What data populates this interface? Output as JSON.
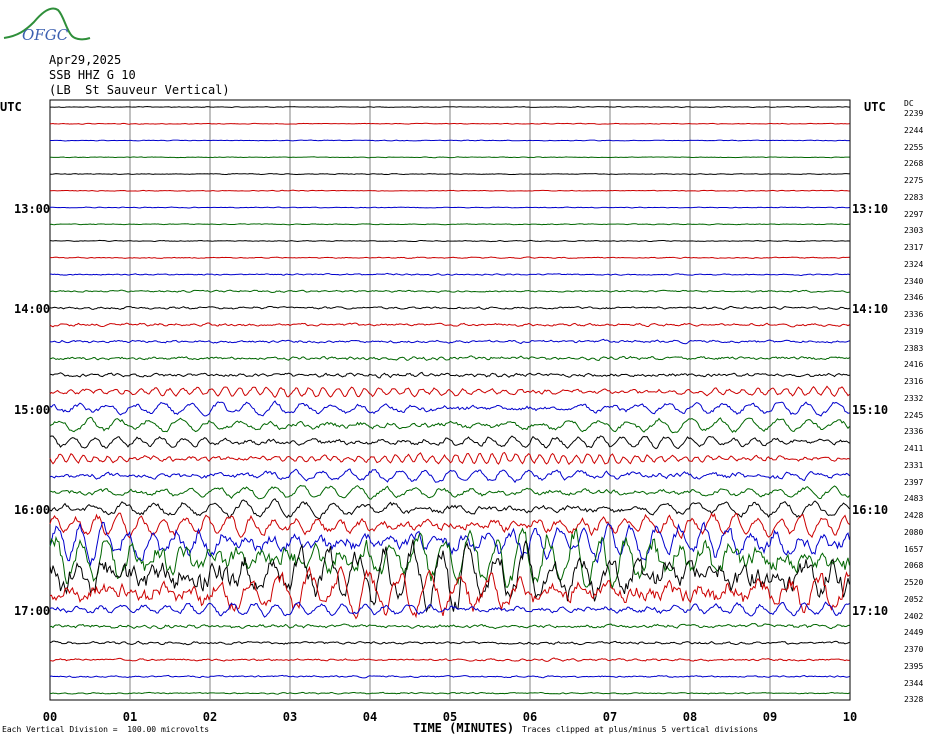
{
  "logo": {
    "text": "OFGC",
    "color": "#2f8f3a",
    "text_color": "#3b5fb0"
  },
  "header": {
    "date": "Apr29,2025",
    "station": "SSB HHZ G 10",
    "location": "(LB  St Sauveur Vertical)"
  },
  "utc_left": "UTC",
  "utc_right": "UTC",
  "dc_label": "DC",
  "colors": [
    "#000000",
    "#cc0000",
    "#0000cc",
    "#006600"
  ],
  "chart_data": {
    "type": "line",
    "xlabel": "TIME (MINUTES)",
    "x_ticks": [
      "00",
      "01",
      "02",
      "03",
      "04",
      "05",
      "06",
      "07",
      "08",
      "09",
      "10"
    ],
    "xlim": [
      0,
      10
    ],
    "grid": true,
    "traces_per_hour": 6,
    "left_time_labels": [
      {
        "trace": 6,
        "label": "13:00"
      },
      {
        "trace": 12,
        "label": "14:00"
      },
      {
        "trace": 18,
        "label": "15:00"
      },
      {
        "trace": 24,
        "label": "16:00"
      },
      {
        "trace": 30,
        "label": "17:00"
      }
    ],
    "right_time_labels": [
      {
        "trace": 6,
        "label": "13:10"
      },
      {
        "trace": 12,
        "label": "14:10"
      },
      {
        "trace": 18,
        "label": "15:10"
      },
      {
        "trace": 24,
        "label": "16:10"
      },
      {
        "trace": 30,
        "label": "17:10"
      }
    ],
    "dc_offsets": [
      2239,
      2244,
      2255,
      2268,
      2275,
      2283,
      2297,
      2303,
      2317,
      2324,
      2340,
      2346,
      2336,
      2319,
      2383,
      2416,
      2316,
      2332,
      2245,
      2336,
      2411,
      2331,
      2397,
      2483,
      2428,
      2080,
      1657,
      2068,
      2520,
      2052,
      2402,
      2449,
      2370,
      2395,
      2344,
      2328
    ],
    "trace_amplitude_divisions": [
      0.08,
      0.08,
      0.08,
      0.08,
      0.09,
      0.08,
      0.08,
      0.09,
      0.1,
      0.12,
      0.15,
      0.18,
      0.25,
      0.3,
      0.3,
      0.35,
      0.4,
      0.45,
      0.6,
      0.6,
      0.55,
      0.5,
      0.6,
      0.55,
      0.7,
      1.0,
      1.6,
      2.5,
      3.0,
      2.0,
      0.6,
      0.4,
      0.3,
      0.25,
      0.2,
      0.15
    ],
    "footer_left": "Each Vertical Division =  100.00 microvolts",
    "footer_right": "Traces clipped at plus/minus 5 vertical divisions"
  }
}
